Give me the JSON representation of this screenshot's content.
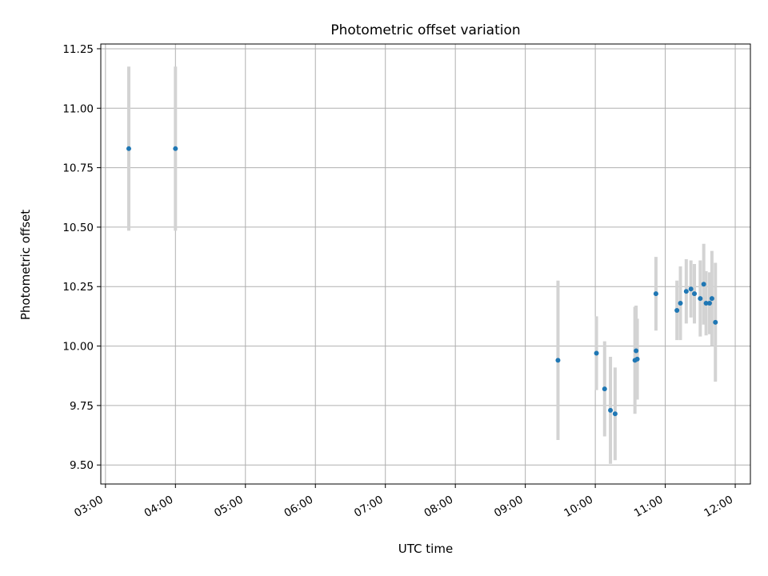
{
  "chart_data": {
    "type": "scatter",
    "title": "Photometric offset variation",
    "xlabel": "UTC time",
    "ylabel": "Photometric offset",
    "x_ticks": [
      "03:00",
      "04:00",
      "05:00",
      "06:00",
      "07:00",
      "08:00",
      "09:00",
      "10:00",
      "11:00",
      "12:00"
    ],
    "y_ticks": [
      "9.50",
      "9.75",
      "10.00",
      "10.25",
      "10.50",
      "10.75",
      "11.00",
      "11.25"
    ],
    "xlim": [
      "02:56",
      "12:13"
    ],
    "ylim": [
      9.42,
      11.27
    ],
    "grid": true,
    "colors": {
      "point": "#1f77b4",
      "errorbar": "#d3d3d3",
      "grid": "#b0b0b0"
    },
    "points": [
      {
        "time": "03:20",
        "y": 10.83,
        "err": 0.345
      },
      {
        "time": "04:00",
        "y": 10.83,
        "err": 0.345
      },
      {
        "time": "09:28",
        "y": 9.94,
        "err": 0.335
      },
      {
        "time": "10:01",
        "y": 9.97,
        "err": 0.155
      },
      {
        "time": "10:08",
        "y": 9.82,
        "err": 0.2
      },
      {
        "time": "10:13",
        "y": 9.73,
        "err": 0.225
      },
      {
        "time": "10:17",
        "y": 9.715,
        "err": 0.195
      },
      {
        "time": "10:34",
        "y": 9.94,
        "err": 0.225
      },
      {
        "time": "10:35",
        "y": 9.98,
        "err": 0.19
      },
      {
        "time": "10:36",
        "y": 9.945,
        "err": 0.17
      },
      {
        "time": "10:52",
        "y": 10.22,
        "err": 0.155
      },
      {
        "time": "11:10",
        "y": 10.15,
        "err": 0.125
      },
      {
        "time": "11:13",
        "y": 10.18,
        "err": 0.155
      },
      {
        "time": "11:18",
        "y": 10.23,
        "err": 0.135
      },
      {
        "time": "11:22",
        "y": 10.24,
        "err": 0.12
      },
      {
        "time": "11:25",
        "y": 10.22,
        "err": 0.125
      },
      {
        "time": "11:30",
        "y": 10.2,
        "err": 0.16
      },
      {
        "time": "11:33",
        "y": 10.26,
        "err": 0.17
      },
      {
        "time": "11:35",
        "y": 10.18,
        "err": 0.135
      },
      {
        "time": "11:38",
        "y": 10.18,
        "err": 0.13
      },
      {
        "time": "11:40",
        "y": 10.2,
        "err": 0.2
      },
      {
        "time": "11:43",
        "y": 10.1,
        "err": 0.25
      }
    ]
  }
}
